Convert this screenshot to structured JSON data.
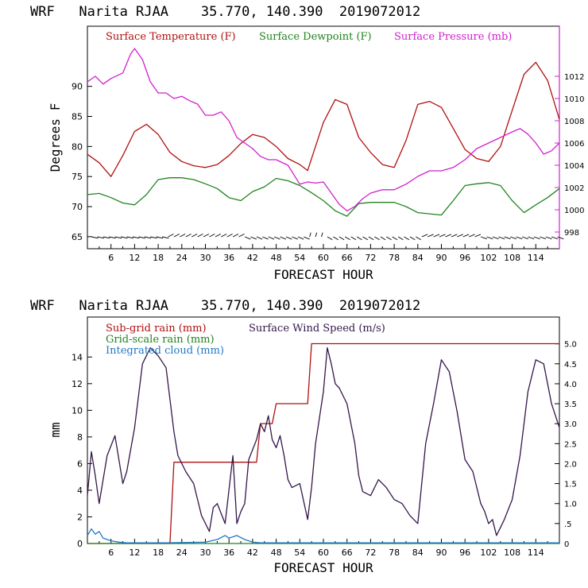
{
  "chart_data": [
    {
      "type": "line",
      "title": "WRF   Narita RJAA    35.770, 140.390  2019072012",
      "xlabel": "FORECAST HOUR",
      "ylabel": "Degrees F",
      "xlim": [
        0,
        120
      ],
      "ylim": [
        63,
        100
      ],
      "y2lim": [
        996.5,
        1016.5
      ],
      "x_ticks": [
        "6",
        "12",
        "18",
        "24",
        "30",
        "36",
        "42",
        "48",
        "54",
        "60",
        "66",
        "72",
        "78",
        "84",
        "90",
        "96",
        "102",
        "108",
        "114"
      ],
      "y_ticks": [
        65,
        70,
        75,
        80,
        85,
        90
      ],
      "y2_ticks": [
        "998",
        "1000",
        "1002",
        "1004",
        "1006",
        "1008",
        "1010",
        "1012"
      ],
      "series": [
        {
          "name": "Surface Temperature (F)",
          "color": "#b01010",
          "axis": "left",
          "x": [
            0,
            3,
            6,
            9,
            12,
            15,
            18,
            21,
            24,
            27,
            30,
            33,
            36,
            39,
            42,
            45,
            48,
            51,
            54,
            56,
            60,
            63,
            66,
            69,
            72,
            75,
            78,
            81,
            84,
            87,
            90,
            93,
            96,
            99,
            102,
            105,
            108,
            111,
            114,
            117,
            120
          ],
          "y": [
            78.7,
            77.3,
            75.0,
            78.5,
            82.5,
            83.7,
            82.0,
            79.0,
            77.5,
            76.8,
            76.5,
            77.0,
            78.5,
            80.5,
            82.0,
            81.5,
            80.0,
            78.0,
            77.0,
            76.0,
            84.0,
            87.8,
            87.0,
            81.5,
            79.0,
            77.0,
            76.5,
            81.0,
            87.0,
            87.5,
            86.5,
            83.0,
            79.5,
            78.0,
            77.5,
            80.0,
            86.0,
            92.0,
            94.0,
            91.0,
            84.5
          ]
        },
        {
          "name": "Surface Dewpoint (F)",
          "color": "#20841e",
          "axis": "left",
          "x": [
            0,
            3,
            6,
            9,
            12,
            15,
            18,
            21,
            24,
            27,
            30,
            33,
            36,
            39,
            42,
            45,
            48,
            51,
            54,
            57,
            60,
            63,
            66,
            69,
            72,
            75,
            78,
            81,
            84,
            87,
            90,
            93,
            96,
            99,
            102,
            105,
            108,
            111,
            114,
            117,
            120
          ],
          "y": [
            72.0,
            72.2,
            71.5,
            70.6,
            70.3,
            72.0,
            74.5,
            74.8,
            74.8,
            74.5,
            73.8,
            73.0,
            71.5,
            71.0,
            72.5,
            73.3,
            74.7,
            74.3,
            73.5,
            72.3,
            71.0,
            69.3,
            68.4,
            70.5,
            70.7,
            70.7,
            70.7,
            70.0,
            69.0,
            68.8,
            68.6,
            71.0,
            73.5,
            73.8,
            74.0,
            73.5,
            71.0,
            69.0,
            70.3,
            71.5,
            73.0
          ]
        },
        {
          "name": "Surface Pressure (mb)",
          "color": "#d020d0",
          "axis": "right",
          "x": [
            0,
            2,
            4,
            6,
            9,
            11,
            12,
            14,
            16,
            18,
            20,
            22,
            24,
            26,
            28,
            30,
            32,
            34,
            36,
            38,
            40,
            42,
            44,
            46,
            48,
            51,
            54,
            56,
            58,
            60,
            62,
            64,
            66,
            68,
            70,
            72,
            75,
            78,
            81,
            84,
            87,
            90,
            93,
            96,
            99,
            102,
            105,
            108,
            110,
            112,
            114,
            116,
            118,
            120
          ],
          "y": [
            1011.5,
            1012.0,
            1011.3,
            1011.8,
            1012.3,
            1014.0,
            1014.5,
            1013.5,
            1011.5,
            1010.5,
            1010.5,
            1010.0,
            1010.2,
            1009.8,
            1009.5,
            1008.5,
            1008.5,
            1008.8,
            1008.0,
            1006.5,
            1006.0,
            1005.5,
            1004.8,
            1004.5,
            1004.5,
            1004.0,
            1002.3,
            1002.5,
            1002.4,
            1002.5,
            1001.5,
            1000.5,
            999.9,
            1000.3,
            1001.0,
            1001.5,
            1001.8,
            1001.8,
            1002.3,
            1003.0,
            1003.5,
            1003.5,
            1003.8,
            1004.5,
            1005.5,
            1006.0,
            1006.5,
            1007.0,
            1007.3,
            1006.8,
            1006.0,
            1005.0,
            1005.3,
            1006.0
          ]
        }
      ],
      "wind_barbs_row_label": "wind barbs along bottom of panel"
    },
    {
      "type": "line",
      "title": "WRF   Narita RJAA    35.770, 140.390  2019072012",
      "xlabel": "FORECAST HOUR",
      "ylabel": "mm",
      "xlim": [
        0,
        120
      ],
      "ylim": [
        0,
        17
      ],
      "y2lim": [
        0,
        5.67
      ],
      "x_ticks": [
        "6",
        "12",
        "18",
        "24",
        "30",
        "36",
        "42",
        "48",
        "54",
        "60",
        "66",
        "72",
        "78",
        "84",
        "90",
        "96",
        "102",
        "108",
        "114"
      ],
      "y_ticks": [
        "0",
        "2",
        "4",
        "6",
        "8",
        "10",
        "12",
        "14"
      ],
      "y2_ticks": [
        "0",
        ".5",
        "1.0",
        "1.5",
        "2.0",
        "2.5",
        "3.0",
        "3.5",
        "4.0",
        "4.5",
        "5.0"
      ],
      "series": [
        {
          "name": "Sub-grid rain (mm)",
          "color": "#b01010",
          "axis": "left",
          "x": [
            0,
            21,
            22,
            43,
            44,
            47,
            48,
            56,
            57,
            120
          ],
          "y": [
            0,
            0,
            6.1,
            6.1,
            9.0,
            9.0,
            10.5,
            10.5,
            15.0,
            15.0
          ]
        },
        {
          "name": "Grid-scale rain (mm)",
          "color": "#20841e",
          "axis": "left",
          "x": [
            0,
            120
          ],
          "y": [
            0,
            0
          ]
        },
        {
          "name": "Integrated cloud (mm)",
          "color": "#1f78c8",
          "axis": "left",
          "x": [
            0,
            1,
            2,
            3,
            4,
            6,
            8,
            10,
            20,
            30,
            33,
            35,
            36,
            38,
            40,
            42,
            44,
            48,
            120
          ],
          "y": [
            0.6,
            1.1,
            0.7,
            0.9,
            0.4,
            0.2,
            0.1,
            0.05,
            0.05,
            0.1,
            0.3,
            0.6,
            0.4,
            0.6,
            0.3,
            0.1,
            0.05,
            0.05,
            0.05
          ]
        },
        {
          "name": "Surface Wind Speed (m/s)",
          "color": "#33164a",
          "axis": "right",
          "x": [
            0,
            1,
            2,
            3,
            5,
            7,
            9,
            10,
            12,
            14,
            16,
            18,
            20,
            22,
            23,
            25,
            27,
            29,
            31,
            32,
            33,
            35,
            37,
            38,
            39,
            40,
            41,
            43,
            44,
            45,
            46,
            47,
            48,
            49,
            50,
            51,
            52,
            54,
            56,
            57,
            58,
            60,
            61,
            62,
            63,
            64,
            66,
            68,
            69,
            70,
            72,
            74,
            76,
            78,
            80,
            82,
            84,
            86,
            88,
            90,
            92,
            94,
            96,
            98,
            100,
            101,
            102,
            103,
            104,
            105,
            106,
            108,
            110,
            112,
            114,
            116,
            118,
            120
          ],
          "y": [
            1.2,
            2.3,
            1.7,
            1.0,
            2.2,
            2.7,
            1.5,
            1.8,
            2.9,
            4.5,
            4.9,
            4.7,
            4.4,
            2.8,
            2.2,
            1.8,
            1.5,
            0.7,
            0.3,
            0.9,
            1.0,
            0.5,
            2.2,
            0.5,
            0.8,
            1.0,
            2.1,
            2.6,
            3.0,
            2.8,
            3.2,
            2.6,
            2.4,
            2.7,
            2.2,
            1.6,
            1.4,
            1.5,
            0.6,
            1.4,
            2.5,
            3.8,
            4.9,
            4.5,
            4.0,
            3.9,
            3.5,
            2.5,
            1.7,
            1.3,
            1.2,
            1.6,
            1.4,
            1.1,
            1.0,
            0.7,
            0.5,
            2.5,
            3.5,
            4.6,
            4.3,
            3.3,
            2.1,
            1.8,
            1.0,
            0.8,
            0.5,
            0.6,
            0.2,
            0.4,
            0.6,
            1.1,
            2.2,
            3.8,
            4.6,
            4.5,
            3.5,
            2.9
          ]
        }
      ]
    }
  ]
}
